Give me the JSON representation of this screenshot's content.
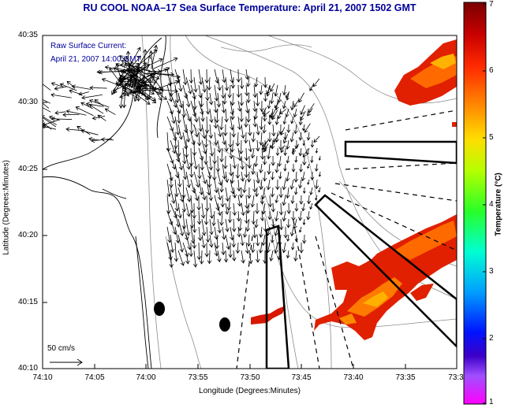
{
  "title": "RU COOL  NOAA–17  Sea Surface Temperature:  April 21, 2007 1502 GMT",
  "legend": {
    "line1": "Raw Surface Current:",
    "line2": "April 21, 2007 14:00 GMT"
  },
  "axes": {
    "xlabel": "Longitude (Degrees:Minutes)",
    "ylabel": "Latitude (Degrees:Minutes)",
    "xticks": [
      "74:10",
      "74:05",
      "74:00",
      "73:55",
      "73:50",
      "73:45",
      "73:40",
      "73:35",
      "73:3"
    ],
    "yticks": [
      "40:35",
      "40:30",
      "40:25",
      "40:20",
      "40:15",
      "40:10"
    ]
  },
  "colorbar": {
    "label": "Temperature (°C)",
    "ticks": [
      "7",
      "6",
      "5",
      "4",
      "3",
      "2",
      "1"
    ],
    "range": [
      1,
      7
    ]
  },
  "scale_arrow": {
    "label": "50 cm/s"
  },
  "colors": {
    "title": "#000099",
    "sst_warm": "#dd1a00",
    "sst_hot": "#ffbb00",
    "coastline": "#000000",
    "bathymetry": "#8c8c8c"
  }
}
